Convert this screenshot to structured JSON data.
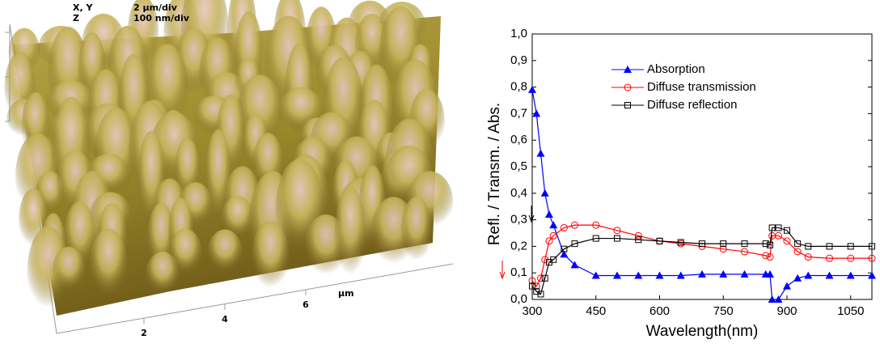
{
  "afm_image": {
    "xy_label": "X, Y",
    "xy_scale": "2 µm/div",
    "z_label": "Z",
    "z_scale": "100 nm/div",
    "unit": "µm",
    "ticks": [
      "2",
      "4",
      "6"
    ]
  },
  "chart_data": {
    "type": "line",
    "x_label": "Wavelength(nm)",
    "y_label": "Refl. / Transm. / Abs.",
    "x": [
      300,
      310,
      320,
      330,
      340,
      350,
      375,
      400,
      450,
      500,
      550,
      600,
      650,
      700,
      750,
      800,
      850,
      860,
      865,
      880,
      900,
      925,
      950,
      1000,
      1050,
      1100
    ],
    "series": [
      {
        "name": "Absorption",
        "color": "#0000ff",
        "marker": "triangle",
        "values": [
          0.79,
          0.7,
          0.55,
          0.4,
          0.32,
          0.28,
          0.17,
          0.13,
          0.09,
          0.09,
          0.09,
          0.09,
          0.09,
          0.095,
          0.095,
          0.095,
          0.095,
          0.095,
          0.0,
          0.0,
          0.05,
          0.08,
          0.09,
          0.09,
          0.09,
          0.09
        ]
      },
      {
        "name": "Diffuse transmission",
        "color": "#ff0000",
        "marker": "circle",
        "values": [
          0.07,
          0.05,
          0.08,
          0.15,
          0.22,
          0.24,
          0.27,
          0.28,
          0.28,
          0.26,
          0.24,
          0.22,
          0.21,
          0.2,
          0.19,
          0.18,
          0.165,
          0.16,
          0.24,
          0.24,
          0.22,
          0.18,
          0.16,
          0.155,
          0.155,
          0.155
        ]
      },
      {
        "name": "Diffuse reflection",
        "color": "#000000",
        "marker": "square",
        "values": [
          0.05,
          0.03,
          0.02,
          0.08,
          0.14,
          0.15,
          0.19,
          0.21,
          0.23,
          0.23,
          0.225,
          0.22,
          0.215,
          0.21,
          0.21,
          0.21,
          0.21,
          0.205,
          0.27,
          0.27,
          0.26,
          0.21,
          0.2,
          0.2,
          0.2,
          0.2
        ]
      }
    ],
    "xlim": [
      300,
      1100
    ],
    "xticks": [
      300,
      450,
      600,
      750,
      900,
      1050
    ],
    "ylim": [
      0,
      1.0
    ],
    "yticks": [
      {
        "value": 0,
        "label": "0,0"
      },
      {
        "value": 0.1,
        "label": "0,1"
      },
      {
        "value": 0.2,
        "label": "0,2"
      },
      {
        "value": 0.3,
        "label": "0,3"
      },
      {
        "value": 0.4,
        "label": "0,4"
      },
      {
        "value": 0.5,
        "label": "0,5"
      },
      {
        "value": 0.6,
        "label": "0,6"
      },
      {
        "value": 0.7,
        "label": "0,7"
      },
      {
        "value": 0.8,
        "label": "0,8"
      },
      {
        "value": 0.9,
        "label": "0,9"
      },
      {
        "value": 1.0,
        "label": "1,0"
      }
    ],
    "legend": "upper left",
    "grid": false
  }
}
